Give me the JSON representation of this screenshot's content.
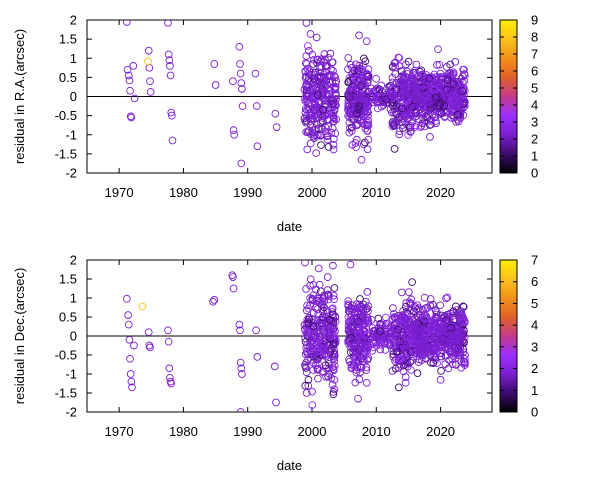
{
  "chart_data": [
    {
      "type": "scatter",
      "xlabel": "date",
      "ylabel": "residual in R.A.(arcsec)",
      "xlim": [
        1965,
        2028
      ],
      "ylim": [
        -2,
        2
      ],
      "xticks": [
        "1970",
        "1980",
        "1990",
        "2000",
        "2010",
        "2020"
      ],
      "yticks": [
        "2",
        "1.5",
        "1",
        "0.5",
        "0",
        "-0.5",
        "-1",
        "-1.5",
        "-2"
      ],
      "colorbar": {
        "min": 0,
        "max": 9,
        "ticks": [
          "9",
          "8",
          "7",
          "6",
          "5",
          "4",
          "3",
          "2",
          "1",
          "0"
        ]
      },
      "zero_line": 0,
      "marker": "open-circle",
      "palette": [
        "#000000",
        "#3d0c6e",
        "#7a1fd0",
        "#9b30ff",
        "#c43a8a",
        "#e0612a",
        "#f39018",
        "#fbc21e",
        "#ffee00"
      ],
      "point_color": "#7a1fd0",
      "highlight_points": [
        {
          "x": 1974.5,
          "y": 0.92,
          "c": 8
        }
      ],
      "sparse_points": [
        {
          "x": 1971.2,
          "y": 1.95
        },
        {
          "x": 1971.3,
          "y": 0.7
        },
        {
          "x": 1971.5,
          "y": 0.55
        },
        {
          "x": 1971.6,
          "y": 0.42
        },
        {
          "x": 1971.7,
          "y": 0.15
        },
        {
          "x": 1971.8,
          "y": -0.52
        },
        {
          "x": 1971.9,
          "y": -0.55
        },
        {
          "x": 1972.2,
          "y": 0.8
        },
        {
          "x": 1972.4,
          "y": -0.05
        },
        {
          "x": 1974.6,
          "y": 1.2
        },
        {
          "x": 1974.7,
          "y": 0.75
        },
        {
          "x": 1974.8,
          "y": 0.4
        },
        {
          "x": 1974.9,
          "y": 0.12
        },
        {
          "x": 1977.6,
          "y": 1.92
        },
        {
          "x": 1977.7,
          "y": 1.1
        },
        {
          "x": 1977.8,
          "y": 0.95
        },
        {
          "x": 1977.9,
          "y": 0.8
        },
        {
          "x": 1978.0,
          "y": 0.55
        },
        {
          "x": 1978.1,
          "y": -0.42
        },
        {
          "x": 1978.2,
          "y": -0.5
        },
        {
          "x": 1978.3,
          "y": -1.15
        },
        {
          "x": 1984.8,
          "y": 0.85
        },
        {
          "x": 1985.0,
          "y": 0.3
        },
        {
          "x": 1987.7,
          "y": 0.4
        },
        {
          "x": 1987.8,
          "y": -0.88
        },
        {
          "x": 1987.9,
          "y": -1.0
        },
        {
          "x": 1988.7,
          "y": 1.3
        },
        {
          "x": 1988.8,
          "y": 0.85
        },
        {
          "x": 1988.9,
          "y": 0.6
        },
        {
          "x": 1989.0,
          "y": 0.35
        },
        {
          "x": 1989.1,
          "y": 0.2
        },
        {
          "x": 1989.2,
          "y": -0.25
        },
        {
          "x": 1989.0,
          "y": -1.75
        },
        {
          "x": 1991.2,
          "y": 0.6
        },
        {
          "x": 1991.4,
          "y": -0.25
        },
        {
          "x": 1991.5,
          "y": -1.3
        },
        {
          "x": 1994.3,
          "y": -0.45
        },
        {
          "x": 1994.5,
          "y": -0.8
        }
      ],
      "clusters": [
        {
          "from": 1998.8,
          "to": 2003.8,
          "n": 280,
          "sd": 0.6
        },
        {
          "from": 2005.6,
          "to": 2008.8,
          "n": 220,
          "sd": 0.55
        },
        {
          "from": 2009.2,
          "to": 2012.5,
          "n": 70,
          "sd": 0.15
        },
        {
          "from": 2012.5,
          "to": 2015.5,
          "n": 180,
          "sd": 0.45
        },
        {
          "from": 2015.5,
          "to": 2023.8,
          "n": 520,
          "sd": 0.33
        }
      ],
      "seed": 11
    },
    {
      "type": "scatter",
      "xlabel": "date",
      "ylabel": "residual in Dec.(arcsec)",
      "xlim": [
        1965,
        2028
      ],
      "ylim": [
        -2,
        2
      ],
      "xticks": [
        "1970",
        "1980",
        "1990",
        "2000",
        "2010",
        "2020"
      ],
      "yticks": [
        "2",
        "1.5",
        "1",
        "0.5",
        "0",
        "-0.5",
        "-1",
        "-1.5",
        "-2"
      ],
      "colorbar": {
        "min": 0,
        "max": 7,
        "ticks": [
          "7",
          "6",
          "5",
          "4",
          "3",
          "2",
          "1",
          "0"
        ]
      },
      "zero_line": 0,
      "marker": "open-circle",
      "palette": [
        "#000000",
        "#3d0c6e",
        "#7a1fd0",
        "#9b30ff",
        "#c43a8a",
        "#e0612a",
        "#f39018",
        "#fbc21e",
        "#ffee00"
      ],
      "point_color": "#7a1fd0",
      "highlight_points": [
        {
          "x": 1973.6,
          "y": 0.78,
          "c": 6
        }
      ],
      "sparse_points": [
        {
          "x": 1971.2,
          "y": 0.98
        },
        {
          "x": 1971.4,
          "y": 0.55
        },
        {
          "x": 1971.5,
          "y": 0.3
        },
        {
          "x": 1971.6,
          "y": -0.1
        },
        {
          "x": 1971.7,
          "y": -0.6
        },
        {
          "x": 1971.8,
          "y": -1.0
        },
        {
          "x": 1971.9,
          "y": -1.2
        },
        {
          "x": 1972.0,
          "y": -1.35
        },
        {
          "x": 1972.3,
          "y": -0.25
        },
        {
          "x": 1974.6,
          "y": 0.1
        },
        {
          "x": 1974.7,
          "y": -0.25
        },
        {
          "x": 1974.8,
          "y": -0.3
        },
        {
          "x": 1977.6,
          "y": 0.15
        },
        {
          "x": 1977.7,
          "y": -0.15
        },
        {
          "x": 1977.8,
          "y": -0.85
        },
        {
          "x": 1977.9,
          "y": -1.1
        },
        {
          "x": 1978.0,
          "y": -1.2
        },
        {
          "x": 1978.1,
          "y": -1.25
        },
        {
          "x": 1984.6,
          "y": 0.9
        },
        {
          "x": 1984.8,
          "y": 0.95
        },
        {
          "x": 1987.6,
          "y": 1.6
        },
        {
          "x": 1987.7,
          "y": 1.55
        },
        {
          "x": 1987.8,
          "y": 1.25
        },
        {
          "x": 1988.7,
          "y": 0.3
        },
        {
          "x": 1988.8,
          "y": 0.15
        },
        {
          "x": 1988.9,
          "y": -0.7
        },
        {
          "x": 1989.0,
          "y": -0.85
        },
        {
          "x": 1989.1,
          "y": -1.0
        },
        {
          "x": 1988.9,
          "y": -2.0
        },
        {
          "x": 1991.3,
          "y": 0.15
        },
        {
          "x": 1991.5,
          "y": -0.55
        },
        {
          "x": 1994.2,
          "y": -0.8
        },
        {
          "x": 1994.4,
          "y": -1.75
        }
      ],
      "clusters": [
        {
          "from": 1998.8,
          "to": 2003.8,
          "n": 280,
          "sd": 0.6
        },
        {
          "from": 2005.6,
          "to": 2008.8,
          "n": 220,
          "sd": 0.55
        },
        {
          "from": 2009.2,
          "to": 2012.5,
          "n": 70,
          "sd": 0.2
        },
        {
          "from": 2012.5,
          "to": 2015.5,
          "n": 180,
          "sd": 0.45
        },
        {
          "from": 2015.5,
          "to": 2023.8,
          "n": 520,
          "sd": 0.35
        }
      ],
      "seed": 29
    }
  ]
}
